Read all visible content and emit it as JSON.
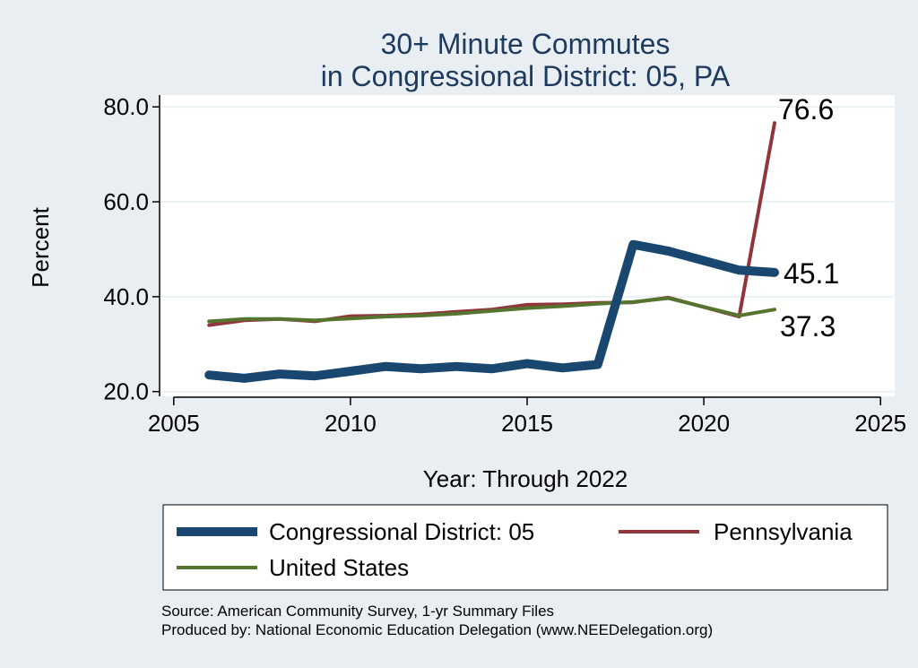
{
  "chart_data": {
    "type": "line",
    "title": [
      "30+ Minute Commutes",
      "in Congressional District:  05, PA"
    ],
    "xlabel": "Year: Through 2022",
    "ylabel": "Percent",
    "xlim": [
      2004.6,
      2025.4
    ],
    "ylim": [
      19.0,
      82.5
    ],
    "x_ticks": [
      "2005",
      "2010",
      "2015",
      "2020",
      "2025"
    ],
    "y_ticks": [
      "20.0",
      "40.0",
      "60.0",
      "80.0"
    ],
    "grid": "horizontal",
    "legend_placement": "bottom",
    "series": [
      {
        "name": "Congressional District:  05",
        "color": "#1a476f",
        "x": [
          2006,
          2007,
          2008,
          2009,
          2010,
          2011,
          2012,
          2013,
          2014,
          2015,
          2016,
          2017,
          2018,
          2019,
          2020,
          2021,
          2022
        ],
        "y": [
          23.5,
          22.8,
          23.7,
          23.3,
          24.3,
          25.3,
          24.8,
          25.3,
          24.8,
          25.9,
          25.0,
          25.7,
          51.0,
          49.6,
          47.6,
          45.6,
          45.1
        ],
        "end_label": "45.1"
      },
      {
        "name": "Pennsylvania",
        "color": "#90353b",
        "x": [
          2006,
          2007,
          2008,
          2009,
          2010,
          2011,
          2012,
          2013,
          2014,
          2015,
          2016,
          2017,
          2018,
          2019,
          2021,
          2022
        ],
        "y": [
          34.0,
          35.0,
          35.3,
          34.8,
          35.9,
          36.0,
          36.3,
          36.8,
          37.3,
          38.3,
          38.4,
          38.7,
          38.8,
          39.8,
          35.8,
          76.6
        ],
        "end_label": "76.6"
      },
      {
        "name": "United States",
        "color": "#55752f",
        "x": [
          2006,
          2007,
          2008,
          2009,
          2010,
          2011,
          2012,
          2013,
          2014,
          2015,
          2016,
          2017,
          2018,
          2019,
          2021,
          2022
        ],
        "y": [
          34.8,
          35.3,
          35.3,
          35.0,
          35.4,
          35.8,
          36.0,
          36.4,
          37.0,
          37.6,
          38.0,
          38.5,
          38.9,
          39.7,
          36.0,
          37.3
        ],
        "end_label": "37.3"
      }
    ]
  },
  "source": {
    "line1": "Source: American Community Survey, 1-yr Summary Files",
    "line2": "Produced by: National Economic Education Delegation (www.NEEDelegation.org)"
  }
}
